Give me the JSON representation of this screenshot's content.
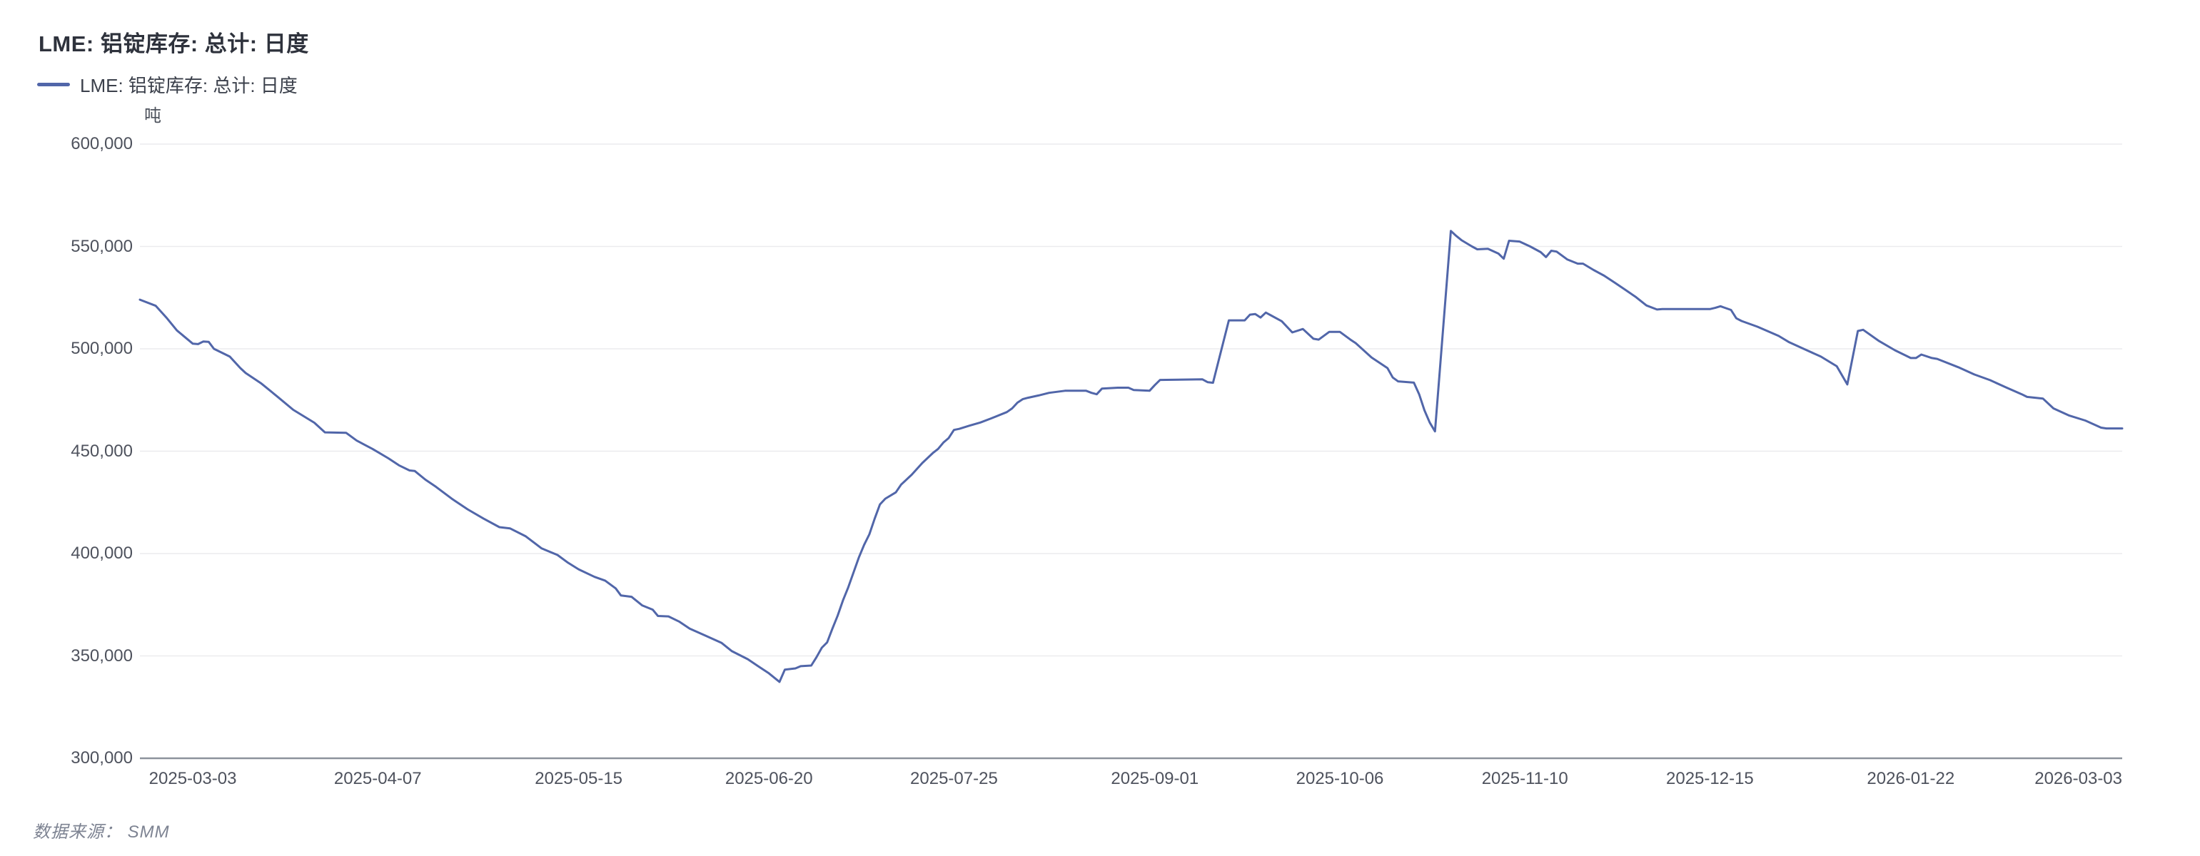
{
  "header": {
    "title": "LME: 铝锭库存: 总计: 日度"
  },
  "legend": {
    "items": [
      {
        "label": "LME: 铝锭库存: 总计: 日度",
        "color": "#5166a9"
      }
    ]
  },
  "footer": {
    "source_note": "数据来源： SMM"
  },
  "chart_data": {
    "type": "line",
    "title": "LME: 铝锭库存: 总计: 日度",
    "unit_label": "吨",
    "ylabel": "吨",
    "ylim": [
      300000,
      600000
    ],
    "ytick_step": 50000,
    "ytick_labels": [
      "300,000",
      "350,000",
      "400,000",
      "450,000",
      "500,000",
      "550,000",
      "600,000"
    ],
    "xtick_labels": [
      "2025-03-03",
      "2025-04-07",
      "2025-05-15",
      "2025-06-20",
      "2025-07-25",
      "2025-09-01",
      "2025-10-06",
      "2025-11-10",
      "2025-12-15",
      "2026-01-22",
      "2026-03-03"
    ],
    "grid": "horizontal-only",
    "legend_position": "top-left",
    "line_color": "#5166a9",
    "gridline_color": "#ebebee",
    "axis_line_color": "#8d929c",
    "text_color": "#4e525d",
    "series": [
      {
        "name": "LME: 铝锭库存: 总计: 日度",
        "color": "#5166a9",
        "points": [
          [
            "2025-02-21",
            524000
          ],
          [
            "2025-02-24",
            521000
          ],
          [
            "2025-02-26",
            515300
          ],
          [
            "2025-02-28",
            509000
          ],
          [
            "2025-03-03",
            502500
          ],
          [
            "2025-03-04",
            502300
          ],
          [
            "2025-03-05",
            503600
          ],
          [
            "2025-03-06",
            503400
          ],
          [
            "2025-03-07",
            500000
          ],
          [
            "2025-03-10",
            496200
          ],
          [
            "2025-03-12",
            490600
          ],
          [
            "2025-03-13",
            488200
          ],
          [
            "2025-03-16",
            483000
          ],
          [
            "2025-03-19",
            476700
          ],
          [
            "2025-03-22",
            470200
          ],
          [
            "2025-03-26",
            463900
          ],
          [
            "2025-03-28",
            459200
          ],
          [
            "2025-04-01",
            459000
          ],
          [
            "2025-04-03",
            455200
          ],
          [
            "2025-04-06",
            451100
          ],
          [
            "2025-04-09",
            446500
          ],
          [
            "2025-04-11",
            443100
          ],
          [
            "2025-04-13",
            440600
          ],
          [
            "2025-04-14",
            440300
          ],
          [
            "2025-04-16",
            436100
          ],
          [
            "2025-04-18",
            432600
          ],
          [
            "2025-04-21",
            426800
          ],
          [
            "2025-04-24",
            421600
          ],
          [
            "2025-04-27",
            417100
          ],
          [
            "2025-04-30",
            412900
          ],
          [
            "2025-05-02",
            412300
          ],
          [
            "2025-05-05",
            408400
          ],
          [
            "2025-05-08",
            402500
          ],
          [
            "2025-05-11",
            399300
          ],
          [
            "2025-05-13",
            395500
          ],
          [
            "2025-05-15",
            392300
          ],
          [
            "2025-05-18",
            388600
          ],
          [
            "2025-05-20",
            386800
          ],
          [
            "2025-05-22",
            383000
          ],
          [
            "2025-05-23",
            379500
          ],
          [
            "2025-05-25",
            378900
          ],
          [
            "2025-05-27",
            374700
          ],
          [
            "2025-05-29",
            372600
          ],
          [
            "2025-05-30",
            369500
          ],
          [
            "2025-06-01",
            369300
          ],
          [
            "2025-06-03",
            366800
          ],
          [
            "2025-06-05",
            363300
          ],
          [
            "2025-06-08",
            359900
          ],
          [
            "2025-06-11",
            356400
          ],
          [
            "2025-06-13",
            352300
          ],
          [
            "2025-06-16",
            348400
          ],
          [
            "2025-06-18",
            344900
          ],
          [
            "2025-06-20",
            341500
          ],
          [
            "2025-06-22",
            337300
          ],
          [
            "2025-06-23",
            343300
          ],
          [
            "2025-06-25",
            343900
          ],
          [
            "2025-06-26",
            345000
          ],
          [
            "2025-06-28",
            345300
          ],
          [
            "2025-06-29",
            349400
          ],
          [
            "2025-06-30",
            354000
          ],
          [
            "2025-07-01",
            356600
          ],
          [
            "2025-07-02",
            363300
          ],
          [
            "2025-07-03",
            369700
          ],
          [
            "2025-07-04",
            377100
          ],
          [
            "2025-07-05",
            383500
          ],
          [
            "2025-07-07",
            398000
          ],
          [
            "2025-07-08",
            404200
          ],
          [
            "2025-07-09",
            409400
          ],
          [
            "2025-07-10",
            417000
          ],
          [
            "2025-07-11",
            424000
          ],
          [
            "2025-07-12",
            426800
          ],
          [
            "2025-07-14",
            429900
          ],
          [
            "2025-07-15",
            433700
          ],
          [
            "2025-07-17",
            438500
          ],
          [
            "2025-07-19",
            444200
          ],
          [
            "2025-07-21",
            449100
          ],
          [
            "2025-07-22",
            451100
          ],
          [
            "2025-07-23",
            454200
          ],
          [
            "2025-07-24",
            456400
          ],
          [
            "2025-07-25",
            460400
          ],
          [
            "2025-07-26",
            460900
          ],
          [
            "2025-07-28",
            462500
          ],
          [
            "2025-07-30",
            464000
          ],
          [
            "2025-08-01",
            466000
          ],
          [
            "2025-08-04",
            469100
          ],
          [
            "2025-08-05",
            470900
          ],
          [
            "2025-08-06",
            473700
          ],
          [
            "2025-08-07",
            475400
          ],
          [
            "2025-08-08",
            476100
          ],
          [
            "2025-08-10",
            477200
          ],
          [
            "2025-08-12",
            478500
          ],
          [
            "2025-08-15",
            479500
          ],
          [
            "2025-08-19",
            479500
          ],
          [
            "2025-08-20",
            478500
          ],
          [
            "2025-08-21",
            477800
          ],
          [
            "2025-08-22",
            480600
          ],
          [
            "2025-08-25",
            481000
          ],
          [
            "2025-08-27",
            481000
          ],
          [
            "2025-08-28",
            479900
          ],
          [
            "2025-08-31",
            479500
          ],
          [
            "2025-09-01",
            482300
          ],
          [
            "2025-09-02",
            484800
          ],
          [
            "2025-09-10",
            485100
          ],
          [
            "2025-09-11",
            483700
          ],
          [
            "2025-09-12",
            483400
          ],
          [
            "2025-09-15",
            513900
          ],
          [
            "2025-09-18",
            513900
          ],
          [
            "2025-09-19",
            516700
          ],
          [
            "2025-09-20",
            517000
          ],
          [
            "2025-09-21",
            515300
          ],
          [
            "2025-09-22",
            517700
          ],
          [
            "2025-09-25",
            513500
          ],
          [
            "2025-09-27",
            508000
          ],
          [
            "2025-09-29",
            509700
          ],
          [
            "2025-10-01",
            504900
          ],
          [
            "2025-10-02",
            504500
          ],
          [
            "2025-10-04",
            508300
          ],
          [
            "2025-10-06",
            508300
          ],
          [
            "2025-10-08",
            504500
          ],
          [
            "2025-10-09",
            502800
          ],
          [
            "2025-10-12",
            495800
          ],
          [
            "2025-10-15",
            490600
          ],
          [
            "2025-10-16",
            486000
          ],
          [
            "2025-10-17",
            484100
          ],
          [
            "2025-10-20",
            483500
          ],
          [
            "2025-10-21",
            477800
          ],
          [
            "2025-10-22",
            470000
          ],
          [
            "2025-10-23",
            464000
          ],
          [
            "2025-10-24",
            459700
          ],
          [
            "2025-10-27",
            557600
          ],
          [
            "2025-10-28",
            555200
          ],
          [
            "2025-10-29",
            553100
          ],
          [
            "2025-10-31",
            550000
          ],
          [
            "2025-11-01",
            548600
          ],
          [
            "2025-11-03",
            548900
          ],
          [
            "2025-11-05",
            546500
          ],
          [
            "2025-11-06",
            544000
          ],
          [
            "2025-11-07",
            552800
          ],
          [
            "2025-11-09",
            552400
          ],
          [
            "2025-11-11",
            550000
          ],
          [
            "2025-11-13",
            547200
          ],
          [
            "2025-11-14",
            544800
          ],
          [
            "2025-11-15",
            547900
          ],
          [
            "2025-11-16",
            547500
          ],
          [
            "2025-11-18",
            543700
          ],
          [
            "2025-11-20",
            541600
          ],
          [
            "2025-11-21",
            541600
          ],
          [
            "2025-11-23",
            538500
          ],
          [
            "2025-11-25",
            535700
          ],
          [
            "2025-11-27",
            532300
          ],
          [
            "2025-11-29",
            528800
          ],
          [
            "2025-12-01",
            525300
          ],
          [
            "2025-12-03",
            521200
          ],
          [
            "2025-12-05",
            519200
          ],
          [
            "2025-12-06",
            519400
          ],
          [
            "2025-12-15",
            519400
          ],
          [
            "2025-12-16",
            520000
          ],
          [
            "2025-12-17",
            520800
          ],
          [
            "2025-12-19",
            519000
          ],
          [
            "2025-12-20",
            514900
          ],
          [
            "2025-12-21",
            513600
          ],
          [
            "2025-12-24",
            510800
          ],
          [
            "2025-12-28",
            506300
          ],
          [
            "2025-12-30",
            503200
          ],
          [
            "2026-01-02",
            499700
          ],
          [
            "2026-01-05",
            496200
          ],
          [
            "2026-01-08",
            491500
          ],
          [
            "2026-01-10",
            482600
          ],
          [
            "2026-01-12",
            508700
          ],
          [
            "2026-01-13",
            509300
          ],
          [
            "2026-01-16",
            503800
          ],
          [
            "2026-01-19",
            499300
          ],
          [
            "2026-01-22",
            495500
          ],
          [
            "2026-01-23",
            495500
          ],
          [
            "2026-01-24",
            497200
          ],
          [
            "2026-01-26",
            495500
          ],
          [
            "2026-01-27",
            495100
          ],
          [
            "2026-01-31",
            491000
          ],
          [
            "2026-02-03",
            487500
          ],
          [
            "2026-02-06",
            484700
          ],
          [
            "2026-02-09",
            481200
          ],
          [
            "2026-02-12",
            477800
          ],
          [
            "2026-02-13",
            476500
          ],
          [
            "2026-02-16",
            475700
          ],
          [
            "2026-02-18",
            470900
          ],
          [
            "2026-02-21",
            467400
          ],
          [
            "2026-02-24",
            465000
          ],
          [
            "2026-02-27",
            461500
          ],
          [
            "2026-02-28",
            461100
          ],
          [
            "2026-03-02",
            461100
          ],
          [
            "2026-03-03",
            461100
          ]
        ]
      }
    ]
  }
}
